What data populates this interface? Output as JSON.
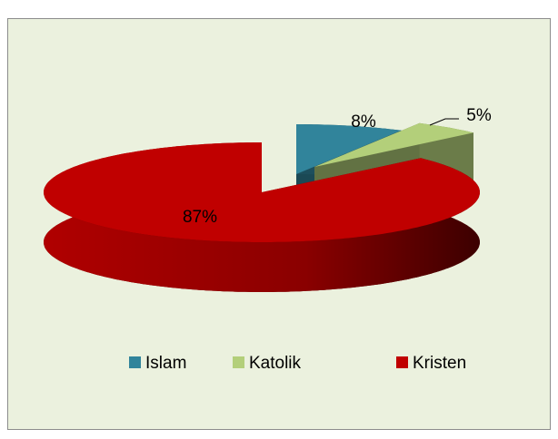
{
  "chart_data": {
    "type": "pie3d",
    "categories": [
      "Islam",
      "Katolik",
      "Kristen"
    ],
    "values": [
      8,
      5,
      87
    ],
    "value_labels": [
      "8%",
      "5%",
      "87%"
    ],
    "colors": [
      "#31849b",
      "#b3cf7a",
      "#c00000"
    ],
    "legend": "bottom"
  }
}
